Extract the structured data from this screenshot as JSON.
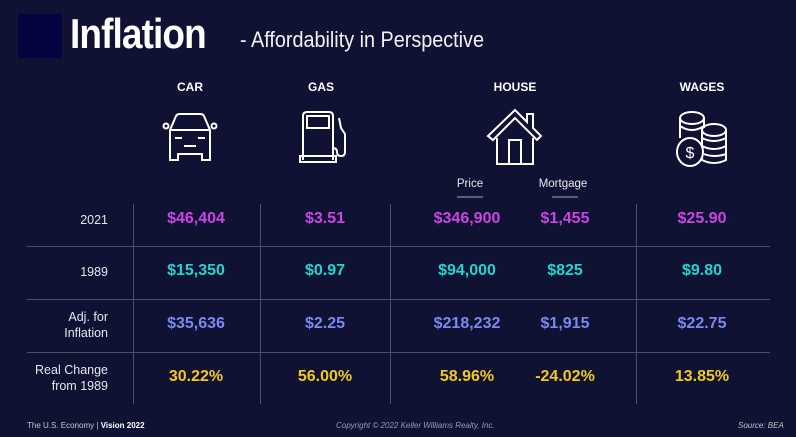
{
  "header": {
    "title": "Inflation",
    "subtitle": "- Affordability in Perspective"
  },
  "columns": [
    {
      "label": "CAR",
      "icon": "car-icon"
    },
    {
      "label": "GAS",
      "icon": "gas-pump-icon"
    },
    {
      "label": "HOUSE",
      "icon": "house-icon",
      "sub": [
        "Price",
        "Mortgage"
      ]
    },
    {
      "label": "WAGES",
      "icon": "coins-dollar-icon"
    }
  ],
  "rows": [
    {
      "label": "2021",
      "values": [
        "$46,404",
        "$3.51",
        "$346,900",
        "$1,455",
        "$25.90"
      ]
    },
    {
      "label": "1989",
      "values": [
        "$15,350",
        "$0.97",
        "$94,000",
        "$825",
        "$9.80"
      ]
    },
    {
      "label": "Adj. for Inflation",
      "values": [
        "$35,636",
        "$2.25",
        "$218,232",
        "$1,915",
        "$22.75"
      ]
    },
    {
      "label": "Real Change from 1989",
      "values": [
        "30.22%",
        "56.00%",
        "58.96%",
        "-24.02%",
        "13.85%"
      ]
    }
  ],
  "colors": {
    "background": "#0f1233",
    "row_2021": "#cc44e6",
    "row_1989": "#1fd6cf",
    "row_adj": "#7b88ee",
    "row_change": "#f2c81e"
  },
  "footer": {
    "left": "The U.S. Economy",
    "left_sep": "|",
    "left_bold": "Vision 2022",
    "center": "Copyright © 2022 Keller Williams Realty, Inc.",
    "right": "Source: BEA"
  }
}
